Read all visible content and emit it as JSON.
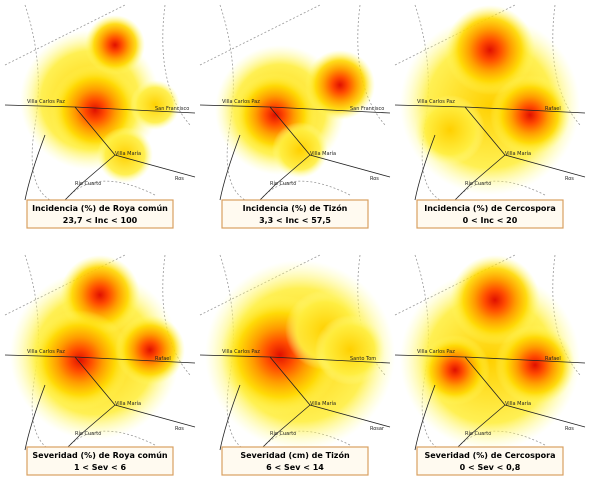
{
  "panels": [
    {
      "title": "Incidencia (%) de Roya común",
      "range": "23,7 < Inc < 100",
      "places": [
        "Villa Carlos Paz",
        "San Francisco",
        "Villa María",
        "Río Cuarto",
        "Ros"
      ]
    },
    {
      "title": "Incidencia (%) de Tizón",
      "range": "3,3 < Inc < 57,5",
      "places": [
        "Villa Carlos Paz",
        "San Francisco",
        "Villa María",
        "Río Cuarto",
        "Ros"
      ]
    },
    {
      "title": "Incidencia (%) de Cercospora",
      "range": "0 < Inc < 20",
      "places": [
        "Villa Carlos Paz",
        "Rafael",
        "Villa María",
        "Río Cuarto",
        "Ros"
      ]
    },
    {
      "title": "Severidad (%) de Roya común",
      "range": "1 < Sev < 6",
      "places": [
        "Villa Carlos Paz",
        "Rafael",
        "Villa María",
        "Río Cuarto",
        "Ros"
      ]
    },
    {
      "title": "Severidad (cm) de Tizón",
      "range": "6 < Sev < 14",
      "places": [
        "Villa Carlos Paz",
        "Santo Tom",
        "Villa María",
        "Río Cuarto",
        "Rosar"
      ]
    },
    {
      "title": "Severidad (%) de Cercospora",
      "range": "0 < Sev < 0,8",
      "places": [
        "Villa Carlos Paz",
        "Rafael",
        "Villa María",
        "Río Cuarto",
        "Ros"
      ]
    }
  ]
}
